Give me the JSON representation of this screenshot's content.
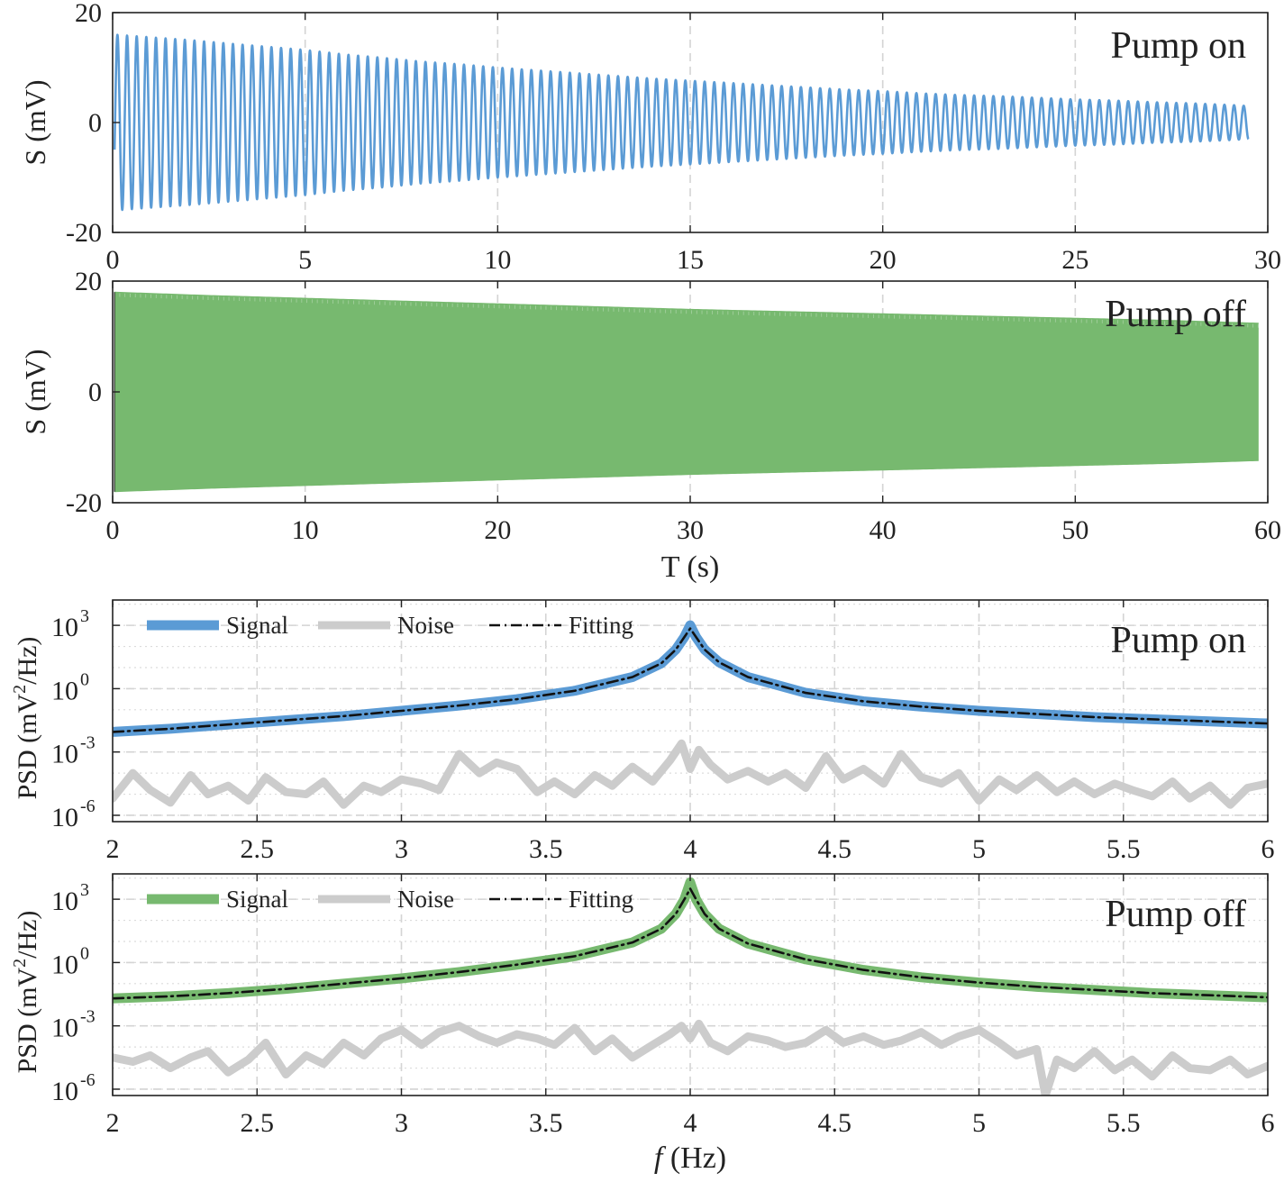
{
  "chart_data": [
    {
      "type": "line",
      "panel_label": "Pump on",
      "ylabel": "S (mV)",
      "xlabel": "",
      "xlim": [
        0,
        30
      ],
      "ylim": [
        -20,
        20
      ],
      "xticks": [
        "0",
        "5",
        "10",
        "15",
        "20",
        "25",
        "30"
      ],
      "yticks": [
        "-20",
        "0",
        "20"
      ],
      "grid": "vertical dashed",
      "color": "#5b9bd5",
      "signal": {
        "kind": "damped_sine",
        "t_start": 0.05,
        "t_end": 29.5,
        "frequency_hz": 4,
        "envelope_t": [
          0.05,
          1,
          2,
          3,
          4,
          5,
          6,
          7,
          8,
          9,
          10,
          11,
          12,
          13,
          14,
          15,
          16,
          17,
          18,
          19,
          20,
          21,
          22,
          23,
          24,
          25,
          26,
          27,
          28,
          29,
          29.5
        ],
        "envelope_mv": [
          16,
          15.5,
          15,
          14.4,
          13.8,
          13.2,
          12.4,
          11.8,
          11.1,
          10.6,
          10,
          9.5,
          9,
          8.5,
          8,
          7.6,
          7.2,
          6.8,
          6.4,
          6,
          5.7,
          5.3,
          5,
          4.8,
          4.5,
          4.2,
          4,
          3.7,
          3.5,
          3.2,
          3
        ]
      }
    },
    {
      "type": "line",
      "panel_label": "Pump off",
      "ylabel": "S (mV)",
      "xlabel": "T (s)",
      "xlim": [
        0,
        60
      ],
      "ylim": [
        -20,
        20
      ],
      "xticks": [
        "0",
        "10",
        "20",
        "30",
        "40",
        "50",
        "60"
      ],
      "yticks": [
        "-20",
        "0",
        "20"
      ],
      "grid": "vertical dashed",
      "color": "#77b96f",
      "signal": {
        "kind": "damped_sine_band",
        "t_start": 0.1,
        "t_end": 59.5,
        "frequency_hz": 4,
        "envelope_t": [
          0.1,
          5,
          10,
          15,
          20,
          25,
          30,
          35,
          40,
          45,
          50,
          55,
          59.5
        ],
        "envelope_mv": [
          18,
          17.4,
          16.9,
          16.4,
          15.9,
          15.4,
          14.9,
          14.5,
          14.1,
          13.7,
          13.3,
          12.9,
          12.4
        ]
      }
    },
    {
      "type": "line",
      "panel_label": "Pump on",
      "ylabel": "PSD (mV²/Hz)",
      "xlabel": "",
      "scale_y": "log",
      "xlim": [
        2,
        6
      ],
      "ylim_log10": [
        -6.3,
        4.2
      ],
      "xticks": [
        "2",
        "2.5",
        "3",
        "3.5",
        "4",
        "4.5",
        "5",
        "5.5",
        "6"
      ],
      "yticks": [
        {
          "base": "10",
          "exp": "3",
          "log10": 3
        },
        {
          "base": "10",
          "exp": "0",
          "log10": 0
        },
        {
          "base": "10",
          "exp": "-3",
          "log10": -3
        },
        {
          "base": "10",
          "exp": "-6",
          "log10": -6
        }
      ],
      "grid": "vertical dashed, horizontal dotted",
      "legend_placement": "top-left",
      "series": [
        {
          "name": "Signal",
          "color": "#5b9bd5",
          "x": [
            2.0,
            2.2,
            2.4,
            2.6,
            2.8,
            3.0,
            3.2,
            3.4,
            3.6,
            3.8,
            3.9,
            3.95,
            3.98,
            4.0,
            4.02,
            4.05,
            4.1,
            4.2,
            4.4,
            4.6,
            4.8,
            5.0,
            5.2,
            5.4,
            5.6,
            5.8,
            6.0
          ],
          "log10_y": [
            -2.05,
            -1.9,
            -1.7,
            -1.5,
            -1.3,
            -1.05,
            -0.8,
            -0.5,
            -0.1,
            0.55,
            1.2,
            1.85,
            2.45,
            3.0,
            2.45,
            1.85,
            1.25,
            0.55,
            -0.2,
            -0.6,
            -0.85,
            -1.05,
            -1.2,
            -1.35,
            -1.45,
            -1.55,
            -1.65
          ]
        },
        {
          "name": "Noise",
          "color": "#cccccc",
          "x": [
            2.0,
            2.07,
            2.13,
            2.2,
            2.27,
            2.33,
            2.4,
            2.47,
            2.53,
            2.6,
            2.67,
            2.73,
            2.8,
            2.87,
            2.93,
            3.0,
            3.07,
            3.13,
            3.2,
            3.27,
            3.33,
            3.4,
            3.47,
            3.53,
            3.6,
            3.67,
            3.73,
            3.8,
            3.87,
            3.93,
            3.97,
            4.0,
            4.03,
            4.07,
            4.13,
            4.2,
            4.27,
            4.33,
            4.4,
            4.47,
            4.53,
            4.6,
            4.67,
            4.73,
            4.8,
            4.87,
            4.93,
            5.0,
            5.07,
            5.13,
            5.2,
            5.27,
            5.33,
            5.4,
            5.47,
            5.53,
            5.6,
            5.67,
            5.73,
            5.8,
            5.87,
            5.93,
            6.0
          ],
          "log10_y": [
            -5.2,
            -4.0,
            -4.8,
            -5.4,
            -4.1,
            -5.0,
            -4.6,
            -5.3,
            -4.2,
            -4.9,
            -5.0,
            -4.4,
            -5.5,
            -4.6,
            -4.9,
            -4.3,
            -4.5,
            -4.8,
            -3.1,
            -4.0,
            -3.5,
            -3.8,
            -4.9,
            -4.4,
            -5.0,
            -4.1,
            -4.6,
            -3.7,
            -4.4,
            -3.4,
            -2.6,
            -3.8,
            -2.9,
            -3.6,
            -4.3,
            -3.9,
            -4.4,
            -4.0,
            -4.7,
            -3.2,
            -4.3,
            -3.8,
            -4.5,
            -3.1,
            -4.2,
            -4.5,
            -4.0,
            -5.3,
            -4.3,
            -4.8,
            -4.1,
            -4.9,
            -4.4,
            -5.0,
            -4.5,
            -4.8,
            -5.1,
            -4.4,
            -5.2,
            -4.6,
            -5.5,
            -4.7,
            -4.5
          ]
        },
        {
          "name": "Fitting",
          "color": "#111111",
          "x": [
            2.0,
            2.2,
            2.4,
            2.6,
            2.8,
            3.0,
            3.2,
            3.4,
            3.6,
            3.8,
            3.9,
            3.95,
            3.98,
            4.0,
            4.02,
            4.05,
            4.1,
            4.2,
            4.4,
            4.6,
            4.8,
            5.0,
            5.2,
            5.4,
            5.6,
            5.8,
            6.0
          ],
          "log10_y": [
            -2.05,
            -1.9,
            -1.7,
            -1.5,
            -1.3,
            -1.05,
            -0.8,
            -0.5,
            -0.1,
            0.55,
            1.2,
            1.85,
            2.45,
            2.85,
            2.45,
            1.85,
            1.25,
            0.55,
            -0.2,
            -0.6,
            -0.85,
            -1.05,
            -1.2,
            -1.35,
            -1.45,
            -1.55,
            -1.65
          ]
        }
      ]
    },
    {
      "type": "line",
      "panel_label": "Pump off",
      "ylabel": "PSD (mV²/Hz)",
      "xlabel": "f (Hz)",
      "scale_y": "log",
      "xlim": [
        2,
        6
      ],
      "ylim_log10": [
        -6.3,
        4.2
      ],
      "xticks": [
        "2",
        "2.5",
        "3",
        "3.5",
        "4",
        "4.5",
        "5",
        "5.5",
        "6"
      ],
      "yticks": [
        {
          "base": "10",
          "exp": "3",
          "log10": 3
        },
        {
          "base": "10",
          "exp": "0",
          "log10": 0
        },
        {
          "base": "10",
          "exp": "-3",
          "log10": -3
        },
        {
          "base": "10",
          "exp": "-6",
          "log10": -6
        }
      ],
      "grid": "vertical dashed, horizontal dotted",
      "legend_placement": "top-left",
      "series": [
        {
          "name": "Signal",
          "color": "#77b96f",
          "x": [
            2.0,
            2.2,
            2.4,
            2.6,
            2.8,
            3.0,
            3.2,
            3.4,
            3.6,
            3.8,
            3.9,
            3.95,
            3.98,
            4.0,
            4.02,
            4.05,
            4.1,
            4.2,
            4.4,
            4.6,
            4.8,
            5.0,
            5.2,
            5.4,
            5.6,
            5.8,
            6.0
          ],
          "log10_y": [
            -1.7,
            -1.6,
            -1.45,
            -1.25,
            -1.0,
            -0.75,
            -0.45,
            -0.1,
            0.3,
            0.95,
            1.6,
            2.3,
            3.0,
            3.8,
            3.0,
            2.3,
            1.6,
            0.9,
            0.15,
            -0.35,
            -0.7,
            -0.95,
            -1.15,
            -1.3,
            -1.45,
            -1.55,
            -1.65
          ]
        },
        {
          "name": "Noise",
          "color": "#cccccc",
          "x": [
            2.0,
            2.07,
            2.13,
            2.2,
            2.27,
            2.33,
            2.4,
            2.47,
            2.53,
            2.6,
            2.67,
            2.73,
            2.8,
            2.87,
            2.93,
            3.0,
            3.07,
            3.13,
            3.2,
            3.27,
            3.33,
            3.4,
            3.47,
            3.53,
            3.6,
            3.67,
            3.73,
            3.8,
            3.87,
            3.93,
            3.97,
            4.0,
            4.03,
            4.07,
            4.13,
            4.2,
            4.27,
            4.33,
            4.4,
            4.47,
            4.53,
            4.6,
            4.67,
            4.73,
            4.8,
            4.87,
            4.93,
            5.0,
            5.07,
            5.13,
            5.2,
            5.23,
            5.27,
            5.33,
            5.4,
            5.47,
            5.53,
            5.6,
            5.67,
            5.73,
            5.8,
            5.87,
            5.93,
            6.0
          ],
          "log10_y": [
            -4.5,
            -4.7,
            -4.4,
            -5.0,
            -4.5,
            -4.2,
            -5.2,
            -4.6,
            -3.8,
            -5.3,
            -4.4,
            -4.8,
            -3.8,
            -4.4,
            -3.6,
            -3.2,
            -3.9,
            -3.3,
            -3.0,
            -3.5,
            -3.8,
            -3.4,
            -3.6,
            -3.9,
            -3.1,
            -4.2,
            -3.6,
            -4.5,
            -3.9,
            -3.4,
            -3.0,
            -3.6,
            -2.9,
            -3.8,
            -4.2,
            -3.5,
            -3.7,
            -4.0,
            -3.8,
            -3.2,
            -3.8,
            -3.5,
            -3.9,
            -3.7,
            -3.3,
            -3.9,
            -3.5,
            -3.2,
            -3.8,
            -4.4,
            -4.1,
            -6.3,
            -4.6,
            -5.0,
            -4.2,
            -5.1,
            -4.6,
            -5.4,
            -4.4,
            -5.0,
            -5.1,
            -4.6,
            -5.3,
            -4.9
          ]
        },
        {
          "name": "Fitting",
          "color": "#111111",
          "x": [
            2.0,
            2.2,
            2.4,
            2.6,
            2.8,
            3.0,
            3.2,
            3.4,
            3.6,
            3.8,
            3.9,
            3.95,
            3.98,
            4.0,
            4.02,
            4.05,
            4.1,
            4.2,
            4.4,
            4.6,
            4.8,
            5.0,
            5.2,
            5.4,
            5.6,
            5.8,
            6.0
          ],
          "log10_y": [
            -1.7,
            -1.6,
            -1.45,
            -1.25,
            -1.0,
            -0.75,
            -0.45,
            -0.1,
            0.3,
            0.95,
            1.6,
            2.3,
            3.0,
            3.5,
            3.0,
            2.3,
            1.6,
            0.9,
            0.15,
            -0.35,
            -0.7,
            -0.95,
            -1.15,
            -1.3,
            -1.45,
            -1.55,
            -1.65
          ]
        }
      ]
    }
  ]
}
